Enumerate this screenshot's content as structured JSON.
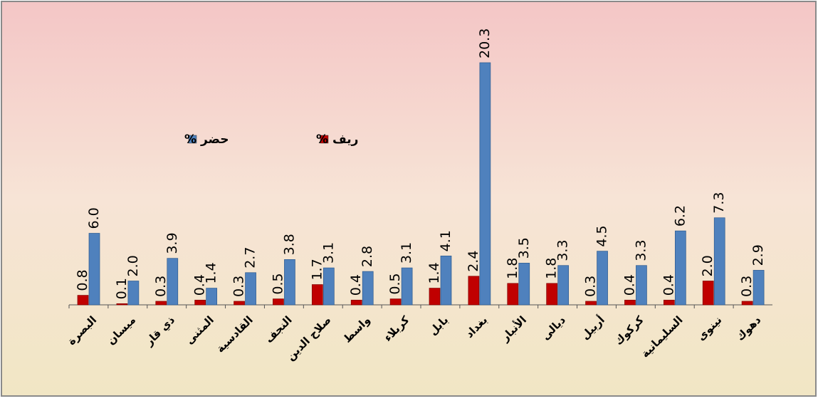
{
  "chart_data": {
    "type": "bar",
    "categories": [
      "البصرة",
      "ميسان",
      "ذي قار",
      "المثنى",
      "القادسية",
      "النجف",
      "صلاح الدين",
      "واسط",
      "كربلاء",
      "بابل",
      "بغداد",
      "الأنبار",
      "ديالى",
      "أربيل",
      "كركوك",
      "السليمانية",
      "نينوى",
      "دهوك"
    ],
    "series": [
      {
        "name": "ريف %",
        "color": "#c00000",
        "values": [
          0.8,
          0.1,
          0.3,
          0.4,
          0.3,
          0.5,
          1.7,
          0.4,
          0.5,
          1.4,
          2.4,
          1.8,
          1.8,
          0.3,
          0.4,
          0.4,
          2.0,
          0.3
        ],
        "value_labels": [
          "0.8",
          "0.1",
          "0.3",
          "0.4",
          "0.3",
          "0.5",
          "1.7",
          "0.4",
          "0.5",
          "1.4",
          "2.4",
          "1.8",
          "1.8",
          "0.3",
          "0.4",
          "0.4",
          "2.0",
          "0.3"
        ]
      },
      {
        "name": "حضر %",
        "color": "#4f81bd",
        "values": [
          6.0,
          2.0,
          3.9,
          1.4,
          2.7,
          3.8,
          3.1,
          2.8,
          3.1,
          4.1,
          20.3,
          3.5,
          3.3,
          4.5,
          3.3,
          6.2,
          7.3,
          2.9
        ],
        "value_labels": [
          "6.0",
          "2.0",
          "3.9",
          "1.4",
          "2.7",
          "3.8",
          "3.1",
          "2.8",
          "3.1",
          "4.1",
          "20.3",
          "3.5",
          "3.3",
          "4.5",
          "3.3",
          "6.2",
          "7.3",
          "2.9"
        ]
      }
    ]
  }
}
